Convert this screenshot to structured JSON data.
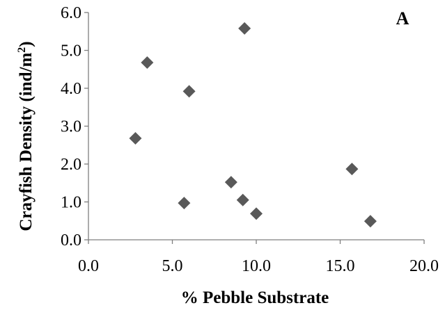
{
  "chart_data": {
    "type": "scatter",
    "panel_label": "A",
    "xlabel": "% Pebble Substrate",
    "ylabel_main": "Crayfish Density (ind/m",
    "ylabel_sup": "2",
    "ylabel_close": ")",
    "xlim": [
      0,
      20
    ],
    "ylim": [
      0,
      6
    ],
    "x_ticks": [
      0,
      5,
      10,
      15,
      20
    ],
    "y_ticks": [
      0,
      1,
      2,
      3,
      4,
      5,
      6
    ],
    "x_tick_labels": [
      "0.0",
      "5.0",
      "10.0",
      "15.0",
      "20.0"
    ],
    "y_tick_labels": [
      "0.0",
      "1.0",
      "2.0",
      "3.0",
      "4.0",
      "5.0",
      "6.0"
    ],
    "grid": false,
    "marker": "diamond",
    "marker_color": "#595959",
    "points": [
      {
        "x": 2.8,
        "y": 2.68
      },
      {
        "x": 3.5,
        "y": 4.68
      },
      {
        "x": 5.7,
        "y": 0.97
      },
      {
        "x": 6.0,
        "y": 3.92
      },
      {
        "x": 8.5,
        "y": 1.52
      },
      {
        "x": 9.2,
        "y": 1.05
      },
      {
        "x": 9.3,
        "y": 5.58
      },
      {
        "x": 10.0,
        "y": 0.69
      },
      {
        "x": 15.7,
        "y": 1.87
      },
      {
        "x": 16.8,
        "y": 0.49
      }
    ]
  }
}
